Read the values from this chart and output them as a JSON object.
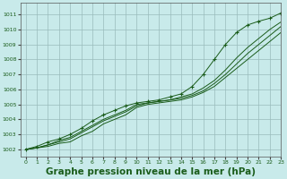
{
  "background_color": "#c8eaea",
  "grid_color": "#99bbbb",
  "line_color": "#1a5c1a",
  "xlabel": "Graphe pression niveau de la mer (hPa)",
  "xlabel_fontsize": 7.5,
  "xlim": [
    -0.5,
    23
  ],
  "ylim": [
    1001.5,
    1011.8
  ],
  "xticks": [
    0,
    1,
    2,
    3,
    4,
    5,
    6,
    7,
    8,
    9,
    10,
    11,
    12,
    13,
    14,
    15,
    16,
    17,
    18,
    19,
    20,
    21,
    22,
    23
  ],
  "yticks": [
    1002,
    1003,
    1004,
    1005,
    1006,
    1007,
    1008,
    1009,
    1010,
    1011
  ],
  "series_plain": [
    [
      1002.0,
      1002.1,
      1002.2,
      1002.4,
      1002.5,
      1002.9,
      1003.2,
      1003.7,
      1004.0,
      1004.3,
      1004.8,
      1005.0,
      1005.1,
      1005.2,
      1005.3,
      1005.5,
      1005.8,
      1006.2,
      1006.8,
      1007.4,
      1008.0,
      1008.6,
      1009.2,
      1009.8
    ],
    [
      1002.0,
      1002.1,
      1002.3,
      1002.5,
      1002.7,
      1003.1,
      1003.5,
      1003.9,
      1004.2,
      1004.5,
      1004.9,
      1005.1,
      1005.2,
      1005.3,
      1005.4,
      1005.6,
      1005.9,
      1006.4,
      1007.0,
      1007.7,
      1008.4,
      1009.0,
      1009.6,
      1010.2
    ],
    [
      1002.0,
      1002.1,
      1002.3,
      1002.6,
      1002.8,
      1003.2,
      1003.6,
      1004.0,
      1004.3,
      1004.6,
      1005.0,
      1005.1,
      1005.2,
      1005.3,
      1005.5,
      1005.7,
      1006.1,
      1006.6,
      1007.3,
      1008.1,
      1008.8,
      1009.4,
      1010.0,
      1010.5
    ]
  ],
  "series_marker": [
    [
      1002.0,
      1002.2,
      1002.5,
      1002.7,
      1003.0,
      1003.4,
      1003.9,
      1004.3,
      1004.6,
      1004.9,
      1005.1,
      1005.2,
      1005.3,
      1005.5,
      1005.7,
      1006.2,
      1007.0,
      1008.0,
      1009.0,
      1009.8,
      1010.3,
      1010.55,
      1010.75,
      1011.1
    ]
  ]
}
